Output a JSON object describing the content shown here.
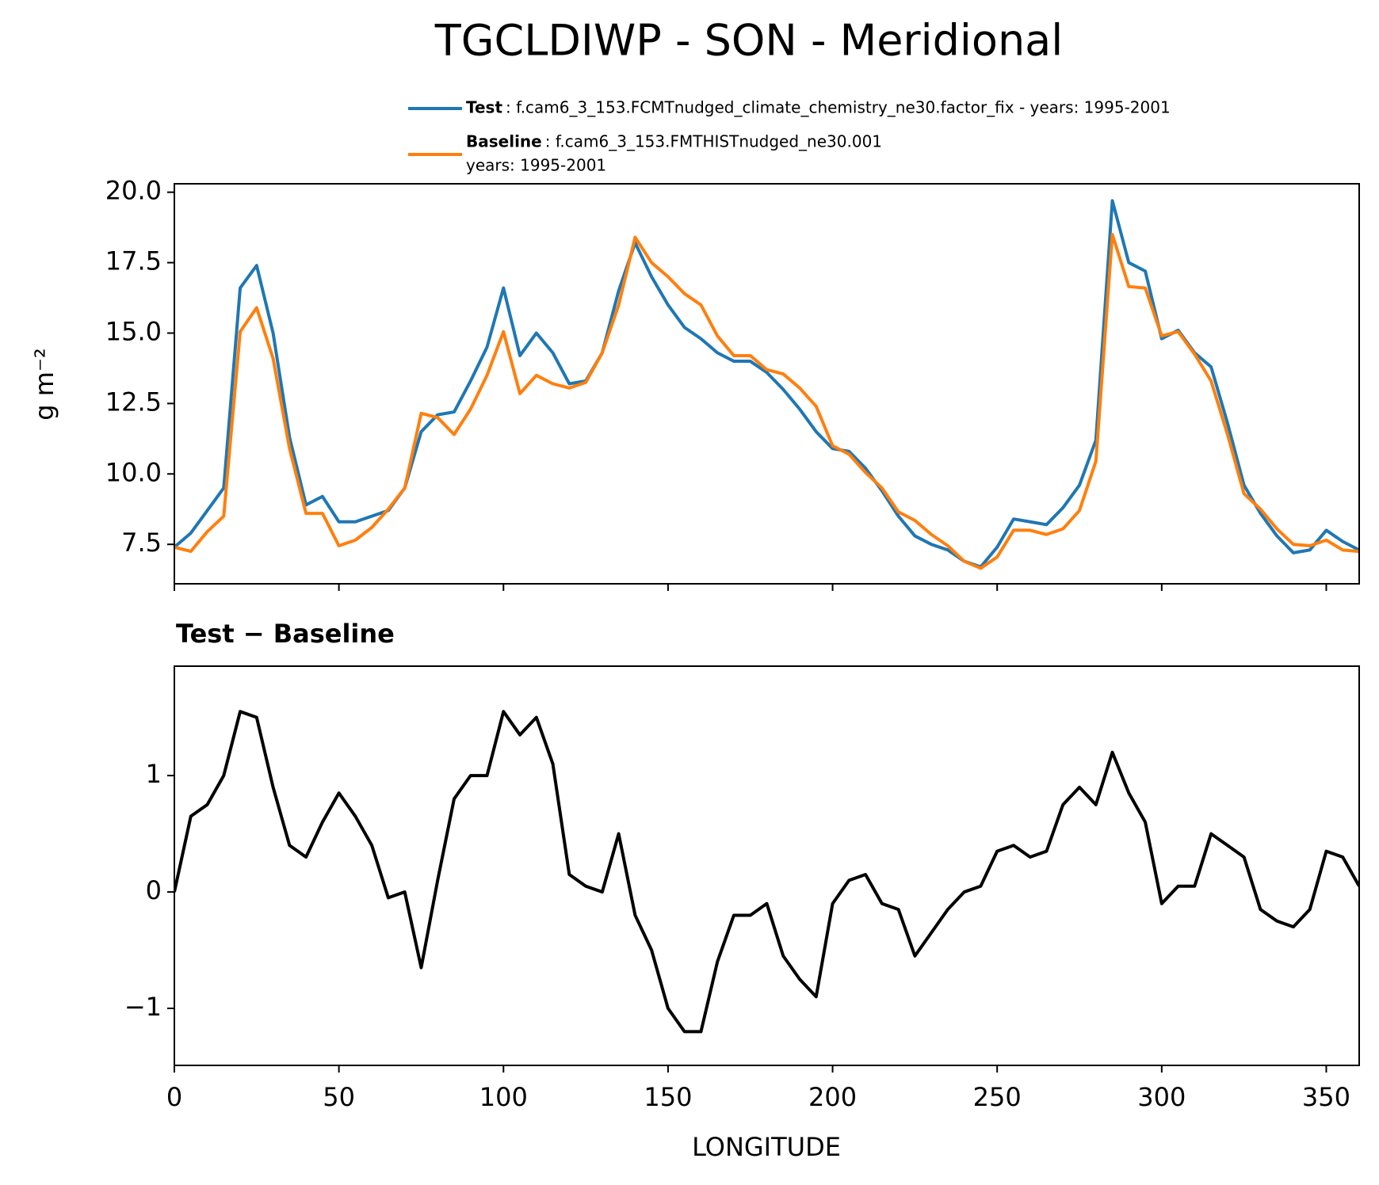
{
  "chart_data": [
    {
      "type": "line",
      "title": "TGCLDIWP - SON - Meridional",
      "ylabel": "g m⁻²",
      "x": [
        0,
        5,
        10,
        15,
        20,
        25,
        30,
        35,
        40,
        45,
        50,
        55,
        60,
        65,
        70,
        75,
        80,
        85,
        90,
        95,
        100,
        105,
        110,
        115,
        120,
        125,
        130,
        135,
        140,
        145,
        150,
        155,
        160,
        165,
        170,
        175,
        180,
        185,
        190,
        195,
        200,
        205,
        210,
        215,
        220,
        225,
        230,
        235,
        240,
        245,
        250,
        255,
        260,
        265,
        270,
        275,
        280,
        285,
        290,
        295,
        300,
        305,
        310,
        315,
        320,
        325,
        330,
        335,
        340,
        345,
        350,
        355,
        360
      ],
      "series": [
        {
          "name": "Test",
          "label_lines": [
            ": f.cam6_3_153.FCMTnudged_climate_chemistry_ne30.factor_fix - years: 1995-2001"
          ],
          "color": "#1f77b4",
          "values": [
            7.4,
            7.9,
            8.7,
            9.5,
            16.6,
            17.4,
            15.0,
            11.3,
            8.9,
            9.2,
            8.3,
            8.3,
            8.5,
            8.7,
            9.5,
            11.5,
            12.1,
            12.2,
            13.3,
            14.5,
            16.6,
            14.2,
            15.0,
            14.3,
            13.2,
            13.3,
            14.3,
            16.5,
            18.2,
            17.0,
            16.0,
            15.2,
            14.8,
            14.3,
            14.0,
            14.0,
            13.6,
            13.0,
            12.3,
            11.5,
            10.9,
            10.8,
            10.2,
            9.4,
            8.5,
            7.8,
            7.5,
            7.3,
            6.9,
            6.7,
            7.4,
            8.4,
            8.3,
            8.2,
            8.8,
            9.6,
            11.2,
            19.7,
            17.5,
            17.2,
            14.8,
            15.1,
            14.3,
            13.8,
            11.8,
            9.6,
            8.6,
            7.8,
            7.2,
            7.3,
            8.0,
            7.6,
            7.3
          ]
        },
        {
          "name": "Baseline",
          "label_lines": [
            ": f.cam6_3_153.FMTHISTnudged_ne30.001",
            "years: 1995-2001"
          ],
          "color": "#ff7f0e",
          "values": [
            7.4,
            7.25,
            7.95,
            8.5,
            15.05,
            15.9,
            14.1,
            10.9,
            8.6,
            8.6,
            7.45,
            7.65,
            8.1,
            8.75,
            9.5,
            12.15,
            12.0,
            11.4,
            12.3,
            13.5,
            15.05,
            12.85,
            13.5,
            13.2,
            13.05,
            13.25,
            14.3,
            16.0,
            18.4,
            17.5,
            17.0,
            16.4,
            16.0,
            14.9,
            14.2,
            14.2,
            13.7,
            13.55,
            13.05,
            12.4,
            11.0,
            10.7,
            10.05,
            9.5,
            8.65,
            8.35,
            7.85,
            7.45,
            6.9,
            6.65,
            7.05,
            8.0,
            8.0,
            7.85,
            8.05,
            8.7,
            10.45,
            18.5,
            16.65,
            16.6,
            14.9,
            15.05,
            14.25,
            13.3,
            11.4,
            9.3,
            8.75,
            8.05,
            7.5,
            7.45,
            7.65,
            7.3,
            7.25
          ]
        }
      ],
      "xlim": [
        0,
        360
      ],
      "xticks": [
        0,
        50,
        100,
        150,
        200,
        250,
        300,
        350
      ],
      "ylim": [
        6.1,
        20.3
      ],
      "yticks": [
        {
          "value": 7.5,
          "label": "7.5"
        },
        {
          "value": 10,
          "label": "10.0"
        },
        12.5,
        {
          "value": 15,
          "label": "15.0"
        },
        17.5,
        {
          "value": 20,
          "label": "20.0"
        }
      ]
    },
    {
      "type": "line",
      "title": "Test − Baseline",
      "xlabel": "LONGITUDE",
      "x": [
        0,
        5,
        10,
        15,
        20,
        25,
        30,
        35,
        40,
        45,
        50,
        55,
        60,
        65,
        70,
        75,
        80,
        85,
        90,
        95,
        100,
        105,
        110,
        115,
        120,
        125,
        130,
        135,
        140,
        145,
        150,
        155,
        160,
        165,
        170,
        175,
        180,
        185,
        190,
        195,
        200,
        205,
        210,
        215,
        220,
        225,
        230,
        235,
        240,
        245,
        250,
        255,
        260,
        265,
        270,
        275,
        280,
        285,
        290,
        295,
        300,
        305,
        310,
        315,
        320,
        325,
        330,
        335,
        340,
        345,
        350,
        355,
        360
      ],
      "color": "#000000",
      "values": [
        0,
        0.65,
        0.75,
        1.0,
        1.55,
        1.5,
        0.9,
        0.4,
        0.3,
        0.6,
        0.85,
        0.65,
        0.4,
        -0.05,
        0.0,
        -0.65,
        0.1,
        0.8,
        1.0,
        1.0,
        1.55,
        1.35,
        1.5,
        1.1,
        0.15,
        0.05,
        0.0,
        0.5,
        -0.2,
        -0.5,
        -1.0,
        -1.2,
        -1.2,
        -0.6,
        -0.2,
        -0.2,
        -0.1,
        -0.55,
        -0.75,
        -0.9,
        -0.1,
        0.1,
        0.15,
        -0.1,
        -0.15,
        -0.55,
        -0.35,
        -0.15,
        0.0,
        0.05,
        0.35,
        0.4,
        0.3,
        0.35,
        0.75,
        0.9,
        0.75,
        1.2,
        0.85,
        0.6,
        -0.1,
        0.05,
        0.05,
        0.5,
        0.4,
        0.3,
        -0.15,
        -0.25,
        -0.3,
        -0.15,
        0.35,
        0.3,
        0.05
      ],
      "xlim": [
        0,
        360
      ],
      "xticks": [
        0,
        50,
        100,
        150,
        200,
        250,
        300,
        350
      ],
      "ylim": [
        -1.49,
        1.94
      ],
      "yticks": [
        {
          "value": -1,
          "label": "−1"
        },
        0,
        1
      ]
    }
  ]
}
